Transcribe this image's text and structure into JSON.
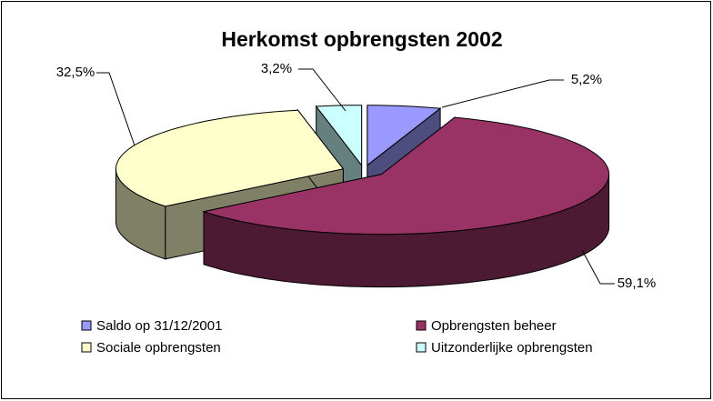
{
  "chart_data": {
    "type": "pie3d",
    "title": "Herkomst opbrengsten 2002",
    "categories": [
      "Saldo op 31/12/2001",
      "Opbrengsten beheer",
      "Sociale opbrengsten",
      "Uitzonderlijke opbrengsten"
    ],
    "values": [
      5.2,
      59.1,
      32.5,
      3.2
    ],
    "value_labels": [
      "5,2%",
      "59,1%",
      "32,5%",
      "3,2%"
    ],
    "colors": [
      "#9999ff",
      "#993366",
      "#ffffcc",
      "#ccffff"
    ],
    "legend": "bottom"
  }
}
